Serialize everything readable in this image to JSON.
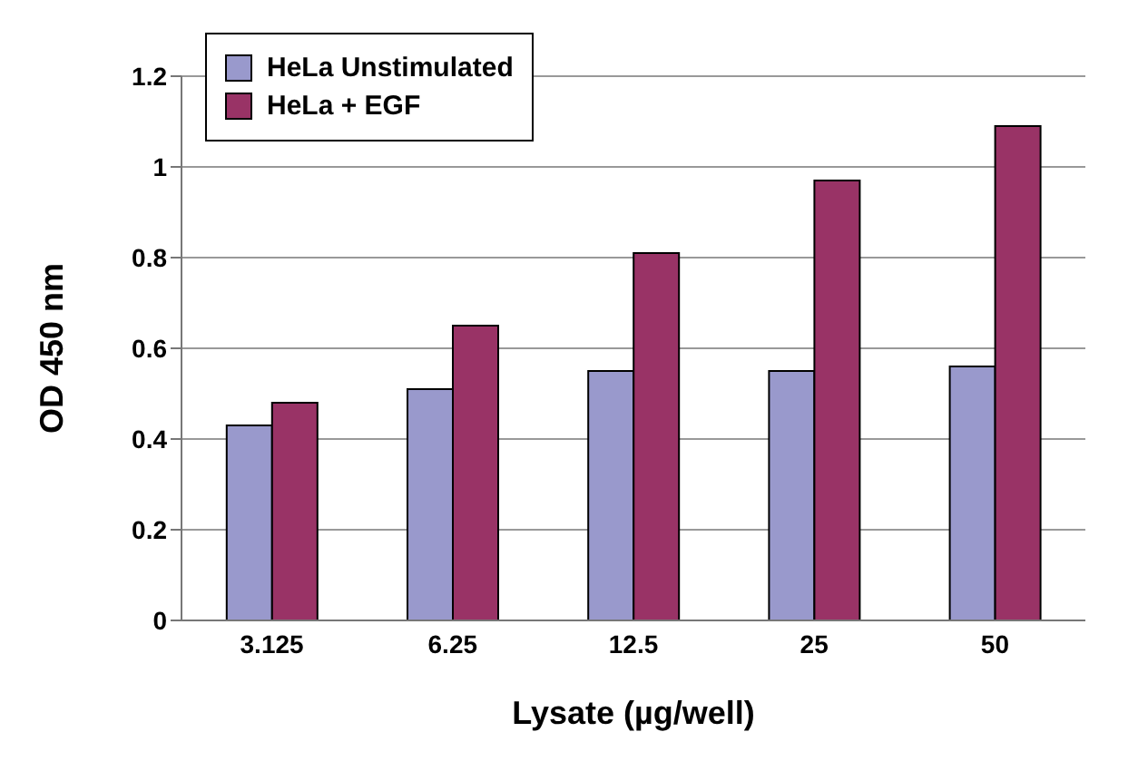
{
  "chart_data": {
    "type": "bar",
    "xlabel": "Lysate (µg/well)",
    "ylabel": "OD 450 nm",
    "categories": [
      "3.125",
      "6.25",
      "12.5",
      "25",
      "50"
    ],
    "series": [
      {
        "name": "HeLa Unstimulated",
        "color": "#9999cc",
        "values": [
          0.43,
          0.51,
          0.55,
          0.55,
          0.56
        ]
      },
      {
        "name": "HeLa + EGF",
        "color": "#993366",
        "values": [
          0.48,
          0.65,
          0.81,
          0.97,
          1.09
        ]
      }
    ],
    "ylim": [
      0,
      1.2
    ],
    "yticks": [
      0,
      0.2,
      0.4,
      0.6,
      0.8,
      1,
      1.2
    ],
    "grid": "y",
    "legend": "top left"
  }
}
